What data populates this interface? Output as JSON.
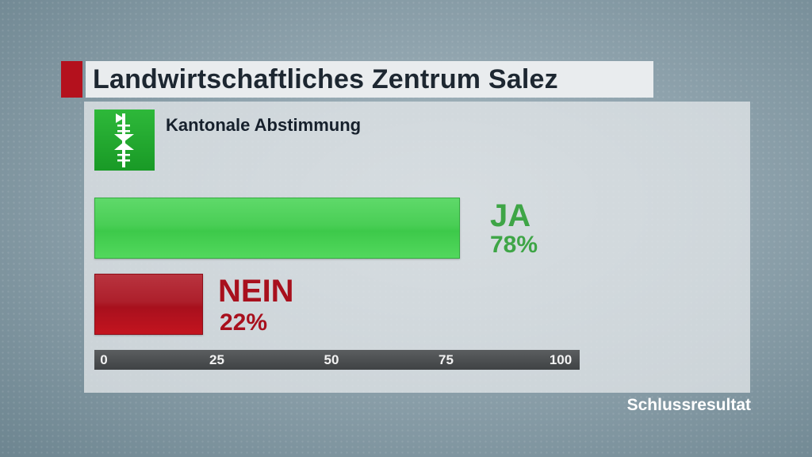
{
  "header": {
    "title": "Landwirtschaftliches Zentrum Salez"
  },
  "subtitle": "Kantonale Abstimmung",
  "logo": {
    "icon": "st-gallen-coat-of-arms-icon"
  },
  "footer": {
    "status": "Schlussresultat"
  },
  "colors": {
    "accent": "#b4111d",
    "ja": "#3ea546",
    "nein": "#a8101d"
  },
  "chart_data": {
    "type": "bar",
    "orientation": "horizontal",
    "title": "Kantonale Abstimmung",
    "categories": [
      "JA",
      "NEIN"
    ],
    "values": [
      78,
      22
    ],
    "value_labels": [
      "78%",
      "22%"
    ],
    "xlim": [
      0,
      100
    ],
    "xticks": [
      "0",
      "25",
      "50",
      "75",
      "100"
    ],
    "grid": false,
    "legend": "none"
  }
}
